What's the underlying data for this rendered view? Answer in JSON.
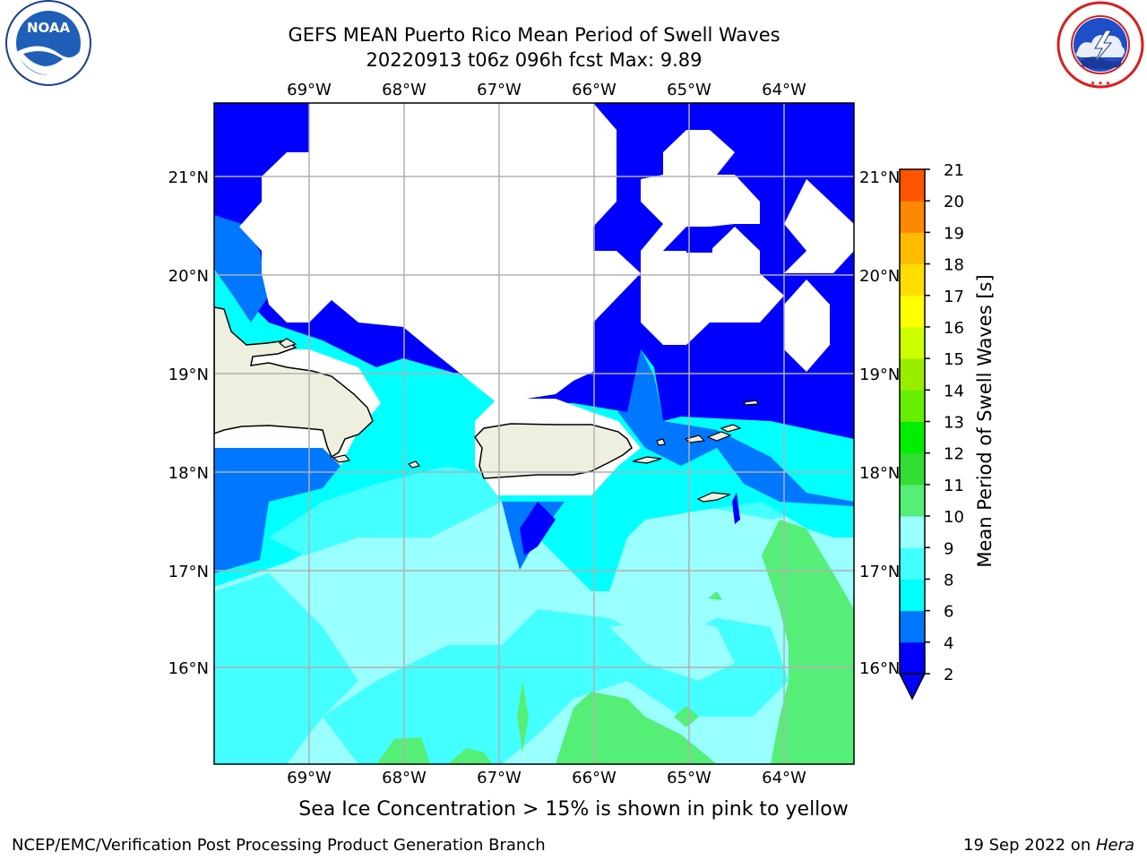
{
  "title": {
    "line1": "GEFS MEAN Puerto Rico Mean Period of Swell Waves",
    "line2": "20220913 t06z 096h fcst   Max: 9.89"
  },
  "logos": {
    "left": {
      "text": "NOAA",
      "ring_text": "NATIONAL OCEANIC AND ATMOSPHERIC ADMINISTRATION · U.S. DEPARTMENT OF COMMERCE"
    },
    "right": {
      "ring_text": "NATIONAL WEATHER SERVICE"
    }
  },
  "map": {
    "lon_labels": [
      "69°W",
      "68°W",
      "67°W",
      "66°W",
      "65°W",
      "64°W"
    ],
    "lat_labels": [
      "21°N",
      "20°N",
      "19°N",
      "18°N",
      "17°N",
      "16°N"
    ],
    "colors": {
      "ocean_white": "#ffffff",
      "land": "#efefdf",
      "grid": "#b0b0b0"
    }
  },
  "colorbar": {
    "label": "Mean Period of Swell Waves [s]",
    "ticks": [
      "2",
      "4",
      "6",
      "8",
      "9",
      "10",
      "11",
      "12",
      "13",
      "14",
      "15",
      "16",
      "17",
      "18",
      "19",
      "20",
      "21"
    ],
    "colors": [
      "#0000ff",
      "#0077ff",
      "#00ffff",
      "#44ffff",
      "#99ffff",
      "#55ee77",
      "#33dd33",
      "#00ee00",
      "#66ee00",
      "#99ee00",
      "#ccff00",
      "#ffff00",
      "#ffdd00",
      "#ffbb00",
      "#ff8800",
      "#ff5500",
      "#ff2200",
      "#ff0000"
    ],
    "extend_color": "#0000ff"
  },
  "caption": "Sea Ice Concentration > 15% is shown in pink to yellow",
  "footer": {
    "left": "NCEP/EMC/Verification Post Processing Product Generation Branch",
    "right_prefix": "19 Sep 2022 on ",
    "right_host": "Hera"
  }
}
